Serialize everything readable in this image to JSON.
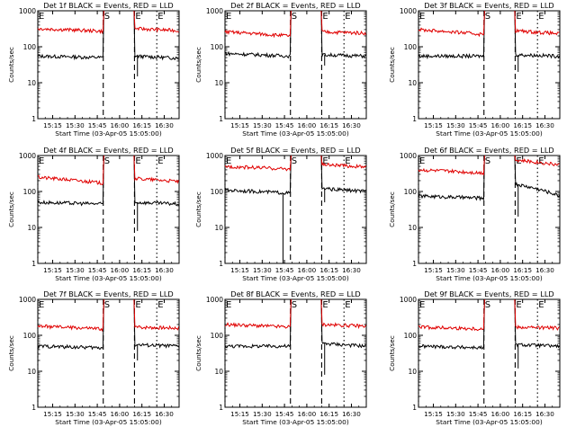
{
  "figure": {
    "colors": {
      "events": "#000000",
      "lld": "#e00000",
      "frame": "#000000"
    }
  },
  "chart_data": [
    {
      "type": "line",
      "panel": "1f",
      "title": "Det 1f BLACK = Events, RED = LLD",
      "xlabel": "Start Time (03-Apr-05 15:05:00)",
      "ylabel": "Counts/sec",
      "yscale": "log",
      "ylim": [
        1,
        1000
      ],
      "xlim": [
        "15:05",
        "16:40"
      ],
      "xticks": [
        "15:15",
        "15:30",
        "15:45",
        "16:00",
        "16:15",
        "16:30"
      ],
      "yticks": [
        "1",
        "10",
        "100",
        "1000"
      ],
      "markers": [
        {
          "label": "E",
          "x": "15:05",
          "style": "dotted"
        },
        {
          "label": "S",
          "x": "15:49",
          "style": "dashed"
        },
        {
          "label": "E",
          "x": "16:10",
          "style": "dashed"
        },
        {
          "label": "E",
          "x": "16:25",
          "style": "dotted"
        }
      ],
      "series": [
        {
          "name": "Events",
          "color": "#000000",
          "pre": [
            55,
            50
          ],
          "post": [
            55,
            48
          ],
          "dips": [
            {
              "x": "16:12",
              "value": 15
            }
          ]
        },
        {
          "name": "LLD",
          "color": "#e00000",
          "pre": [
            320,
            270
          ],
          "post": [
            320,
            280
          ],
          "dips": []
        }
      ]
    },
    {
      "type": "line",
      "panel": "2f",
      "title": "Det 2f BLACK = Events, RED = LLD",
      "xlabel": "Start Time (03-Apr-05 15:05:00)",
      "ylabel": "Counts/sec",
      "yscale": "log",
      "ylim": [
        1,
        1000
      ],
      "xlim": [
        "15:05",
        "16:40"
      ],
      "xticks": [
        "15:15",
        "15:30",
        "15:45",
        "16:00",
        "16:15",
        "16:30"
      ],
      "yticks": [
        "1",
        "10",
        "100",
        "1000"
      ],
      "markers": [
        {
          "label": "E",
          "x": "15:05",
          "style": "dotted"
        },
        {
          "label": "S",
          "x": "15:49",
          "style": "dashed"
        },
        {
          "label": "E",
          "x": "16:10",
          "style": "dashed"
        },
        {
          "label": "E",
          "x": "16:25",
          "style": "dotted"
        }
      ],
      "series": [
        {
          "name": "Events",
          "color": "#000000",
          "pre": [
            65,
            55
          ],
          "post": [
            60,
            55
          ],
          "dips": [
            {
              "x": "16:12",
              "value": 30
            }
          ]
        },
        {
          "name": "LLD",
          "color": "#e00000",
          "pre": [
            260,
            200
          ],
          "post": [
            260,
            240
          ],
          "dips": []
        }
      ]
    },
    {
      "type": "line",
      "panel": "3f",
      "title": "Det 3f BLACK = Events, RED = LLD",
      "xlabel": "Start Time (03-Apr-05 15:05:00)",
      "ylabel": "Counts/sec",
      "yscale": "log",
      "ylim": [
        1,
        1000
      ],
      "xlim": [
        "15:05",
        "16:40"
      ],
      "xticks": [
        "15:15",
        "15:30",
        "15:45",
        "16:00",
        "16:15",
        "16:30"
      ],
      "yticks": [
        "1",
        "10",
        "100",
        "1000"
      ],
      "markers": [
        {
          "label": "E",
          "x": "15:05",
          "style": "dotted"
        },
        {
          "label": "S",
          "x": "15:49",
          "style": "dashed"
        },
        {
          "label": "E",
          "x": "16:10",
          "style": "dashed"
        },
        {
          "label": "E",
          "x": "16:25",
          "style": "dotted"
        }
      ],
      "series": [
        {
          "name": "Events",
          "color": "#000000",
          "pre": [
            55,
            55
          ],
          "post": [
            60,
            55
          ],
          "dips": [
            {
              "x": "16:12",
              "value": 20
            }
          ]
        },
        {
          "name": "LLD",
          "color": "#e00000",
          "pre": [
            300,
            220
          ],
          "post": [
            280,
            230
          ],
          "dips": []
        }
      ]
    },
    {
      "type": "line",
      "panel": "4f",
      "title": "Det 4f BLACK = Events, RED = LLD",
      "xlabel": "Start Time (03-Apr-05 15:05:00)",
      "ylabel": "Counts/sec",
      "yscale": "log",
      "ylim": [
        1,
        1000
      ],
      "xlim": [
        "15:05",
        "16:40"
      ],
      "xticks": [
        "15:15",
        "15:30",
        "15:45",
        "16:00",
        "16:15",
        "16:30"
      ],
      "yticks": [
        "1",
        "10",
        "100",
        "1000"
      ],
      "markers": [
        {
          "label": "E",
          "x": "15:05",
          "style": "dotted"
        },
        {
          "label": "S",
          "x": "15:49",
          "style": "dashed"
        },
        {
          "label": "E",
          "x": "16:10",
          "style": "dashed"
        },
        {
          "label": "E",
          "x": "16:25",
          "style": "dotted"
        }
      ],
      "series": [
        {
          "name": "Events",
          "color": "#000000",
          "pre": [
            50,
            45
          ],
          "post": [
            50,
            45
          ],
          "dips": [
            {
              "x": "16:12",
              "value": 8
            }
          ]
        },
        {
          "name": "LLD",
          "color": "#e00000",
          "pre": [
            250,
            170
          ],
          "post": [
            230,
            190
          ],
          "dips": []
        }
      ]
    },
    {
      "type": "line",
      "panel": "5f",
      "title": "Det 5f BLACK = Events, RED = LLD",
      "xlabel": "Start Time (03-Apr-05 15:05:00)",
      "ylabel": "Counts/sec",
      "yscale": "log",
      "ylim": [
        1,
        1000
      ],
      "xlim": [
        "15:05",
        "16:40"
      ],
      "xticks": [
        "15:15",
        "15:30",
        "15:45",
        "16:00",
        "16:15",
        "16:30"
      ],
      "yticks": [
        "1",
        "10",
        "100",
        "1000"
      ],
      "markers": [
        {
          "label": "E",
          "x": "15:05",
          "style": "dotted"
        },
        {
          "label": "S",
          "x": "15:49",
          "style": "dashed"
        },
        {
          "label": "E",
          "x": "16:10",
          "style": "dashed"
        },
        {
          "label": "E",
          "x": "16:25",
          "style": "dotted"
        }
      ],
      "series": [
        {
          "name": "Events",
          "color": "#000000",
          "pre": [
            110,
            90
          ],
          "post": [
            120,
            100
          ],
          "dips": [
            {
              "x": "15:44",
              "value": 1
            },
            {
              "x": "16:12",
              "value": 50
            }
          ]
        },
        {
          "name": "LLD",
          "color": "#e00000",
          "pre": [
            500,
            420
          ],
          "post": [
            560,
            480
          ],
          "dips": []
        }
      ]
    },
    {
      "type": "line",
      "panel": "6f",
      "title": "Det 6f BLACK = Events, RED = LLD",
      "xlabel": "Start Time (03-Apr-05 15:05:00)",
      "ylabel": "Counts/sec",
      "yscale": "log",
      "ylim": [
        1,
        1000
      ],
      "xlim": [
        "15:05",
        "16:40"
      ],
      "xticks": [
        "15:15",
        "15:30",
        "15:45",
        "16:00",
        "16:15",
        "16:30"
      ],
      "yticks": [
        "1",
        "10",
        "100",
        "1000"
      ],
      "markers": [
        {
          "label": "E",
          "x": "15:05",
          "style": "dotted"
        },
        {
          "label": "S",
          "x": "15:49",
          "style": "dashed"
        },
        {
          "label": "E",
          "x": "16:10",
          "style": "dashed"
        },
        {
          "label": "E",
          "x": "16:25",
          "style": "dotted"
        }
      ],
      "series": [
        {
          "name": "Events",
          "color": "#000000",
          "pre": [
            75,
            65
          ],
          "post": [
            160,
            75
          ],
          "dips": [
            {
              "x": "16:12",
              "value": 20
            }
          ]
        },
        {
          "name": "LLD",
          "color": "#e00000",
          "pre": [
            400,
            330
          ],
          "post": [
            750,
            550
          ],
          "dips": []
        }
      ]
    },
    {
      "type": "line",
      "panel": "7f",
      "title": "Det 7f BLACK = Events, RED = LLD",
      "xlabel": "Start Time (03-Apr-05 15:05:00)",
      "ylabel": "Counts/sec",
      "yscale": "log",
      "ylim": [
        1,
        1000
      ],
      "xlim": [
        "15:05",
        "16:40"
      ],
      "xticks": [
        "15:15",
        "15:30",
        "15:45",
        "16:00",
        "16:15",
        "16:30"
      ],
      "yticks": [
        "1",
        "10",
        "100",
        "1000"
      ],
      "markers": [
        {
          "label": "E",
          "x": "15:05",
          "style": "dotted"
        },
        {
          "label": "S",
          "x": "15:49",
          "style": "dashed"
        },
        {
          "label": "E",
          "x": "16:10",
          "style": "dashed"
        },
        {
          "label": "E",
          "x": "16:25",
          "style": "dotted"
        }
      ],
      "series": [
        {
          "name": "Events",
          "color": "#000000",
          "pre": [
            50,
            45
          ],
          "post": [
            55,
            50
          ],
          "dips": [
            {
              "x": "16:12",
              "value": 20
            }
          ]
        },
        {
          "name": "LLD",
          "color": "#e00000",
          "pre": [
            180,
            150
          ],
          "post": [
            170,
            160
          ],
          "dips": []
        }
      ]
    },
    {
      "type": "line",
      "panel": "8f",
      "title": "Det 8f BLACK = Events, RED = LLD",
      "xlabel": "Start Time (03-Apr-05 15:05:00)",
      "ylabel": "Counts/sec",
      "yscale": "log",
      "ylim": [
        1,
        1000
      ],
      "xlim": [
        "15:05",
        "16:40"
      ],
      "xticks": [
        "15:15",
        "15:30",
        "15:45",
        "16:00",
        "16:15",
        "16:30"
      ],
      "yticks": [
        "1",
        "10",
        "100",
        "1000"
      ],
      "markers": [
        {
          "label": "E",
          "x": "15:05",
          "style": "dotted"
        },
        {
          "label": "S",
          "x": "15:49",
          "style": "dashed"
        },
        {
          "label": "E",
          "x": "16:10",
          "style": "dashed"
        },
        {
          "label": "E",
          "x": "16:25",
          "style": "dotted"
        }
      ],
      "series": [
        {
          "name": "Events",
          "color": "#000000",
          "pre": [
            50,
            50
          ],
          "post": [
            60,
            50
          ],
          "dips": [
            {
              "x": "16:12",
              "value": 8
            }
          ]
        },
        {
          "name": "LLD",
          "color": "#e00000",
          "pre": [
            200,
            170
          ],
          "post": [
            200,
            180
          ],
          "dips": []
        }
      ]
    },
    {
      "type": "line",
      "panel": "9f",
      "title": "Det 9f BLACK = Events, RED = LLD",
      "xlabel": "Start Time (03-Apr-05 15:05:00)",
      "ylabel": "Counts/sec",
      "yscale": "log",
      "ylim": [
        1,
        1000
      ],
      "xlim": [
        "15:05",
        "16:40"
      ],
      "xticks": [
        "15:15",
        "15:30",
        "15:45",
        "16:00",
        "16:15",
        "16:30"
      ],
      "yticks": [
        "1",
        "10",
        "100",
        "1000"
      ],
      "markers": [
        {
          "label": "E",
          "x": "15:05",
          "style": "dotted"
        },
        {
          "label": "S",
          "x": "15:49",
          "style": "dashed"
        },
        {
          "label": "E",
          "x": "16:10",
          "style": "dashed"
        },
        {
          "label": "E",
          "x": "16:25",
          "style": "dotted"
        }
      ],
      "series": [
        {
          "name": "Events",
          "color": "#000000",
          "pre": [
            50,
            45
          ],
          "post": [
            55,
            50
          ],
          "dips": [
            {
              "x": "16:12",
              "value": 12
            }
          ]
        },
        {
          "name": "LLD",
          "color": "#e00000",
          "pre": [
            170,
            150
          ],
          "post": [
            170,
            160
          ],
          "dips": []
        }
      ]
    }
  ]
}
